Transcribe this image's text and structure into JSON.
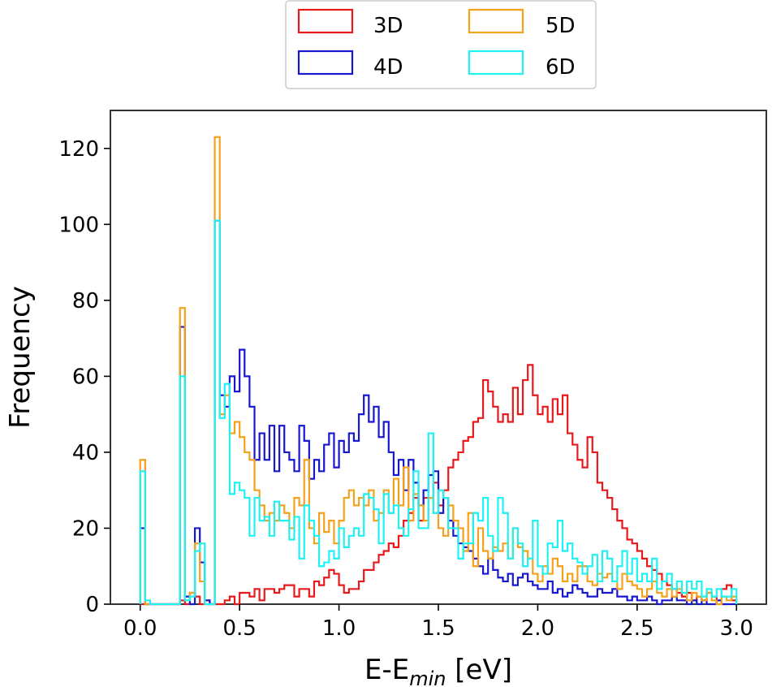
{
  "chart_data": {
    "type": "histogram-step",
    "xlabel": "E-E",
    "xlabel_sub": "min",
    "xlabel_unit": "[eV]",
    "ylabel": "Frequency",
    "xlim": [
      -0.15,
      3.15
    ],
    "ylim": [
      0,
      130
    ],
    "xticks": [
      0.0,
      0.5,
      1.0,
      1.5,
      2.0,
      2.5,
      3.0
    ],
    "xtick_labels": [
      "0.0",
      "0.5",
      "1.0",
      "1.5",
      "2.0",
      "2.5",
      "3.0"
    ],
    "yticks": [
      0,
      20,
      40,
      60,
      80,
      100,
      120
    ],
    "ytick_labels": [
      "0",
      "20",
      "40",
      "60",
      "80",
      "100",
      "120"
    ],
    "legend_location": "upper-center-outside",
    "bin_start": 0.0,
    "bin_width": 0.025,
    "series": [
      {
        "name": "3D",
        "color": "#e8191c",
        "values": [
          0,
          0,
          0,
          0,
          0,
          0,
          0,
          0,
          0,
          0,
          0,
          0,
          0,
          0,
          0,
          0,
          0,
          0,
          0,
          0,
          0,
          0,
          0,
          0,
          0,
          0,
          0,
          0,
          0,
          0,
          0,
          0,
          0,
          0,
          0,
          0,
          0,
          0,
          0,
          0,
          0,
          0,
          0,
          0,
          0,
          0,
          0,
          0,
          0,
          0,
          0,
          0,
          0,
          0,
          1,
          2,
          0,
          1,
          2,
          3,
          3,
          2,
          3,
          1,
          2,
          3,
          4,
          5,
          6,
          4,
          7,
          4,
          5,
          5,
          5,
          3,
          5,
          9,
          11,
          13,
          15,
          17,
          20,
          18,
          19,
          22,
          24,
          22,
          28,
          33,
          36,
          40,
          43,
          44,
          47,
          49,
          59,
          56,
          50,
          52,
          50,
          55,
          52,
          57,
          63,
          55,
          50,
          52,
          48,
          55,
          52,
          49,
          36,
          40,
          44,
          34,
          32,
          30,
          26,
          25,
          22,
          19,
          17,
          16,
          15,
          14,
          12,
          10,
          8,
          6,
          4,
          3,
          2,
          1,
          0,
          1,
          2,
          1,
          0,
          0,
          0,
          0,
          0,
          0,
          0,
          0,
          0,
          0,
          0,
          0
        ]
      },
      {
        "name": "4D",
        "color": "#1717cf",
        "values": [
          20,
          0,
          0,
          0,
          0,
          0,
          0,
          0,
          0,
          0,
          0,
          0,
          0,
          0,
          0,
          0,
          0,
          73,
          0,
          0,
          20,
          11,
          0,
          0,
          0,
          0,
          0,
          0,
          0,
          0,
          0,
          0,
          0,
          0,
          0,
          0,
          0,
          0,
          0,
          0,
          0,
          0,
          0,
          0,
          0,
          0,
          0,
          0,
          0,
          0,
          0,
          0,
          0,
          0,
          0,
          0,
          0,
          0,
          0,
          0,
          0,
          0,
          0,
          0,
          0,
          0,
          0,
          0,
          0,
          0,
          0,
          0,
          0,
          0,
          0,
          0,
          0,
          0,
          0,
          0,
          0,
          0,
          0,
          0,
          0,
          0,
          0,
          0,
          0,
          0,
          0,
          0,
          0,
          0,
          0,
          0,
          0,
          0,
          0,
          0,
          0,
          0,
          0,
          0,
          0,
          0,
          0,
          0,
          0,
          0,
          0,
          0,
          0,
          0,
          0,
          0,
          0,
          0,
          0,
          0,
          0,
          0,
          0,
          0,
          0,
          0,
          0,
          0,
          0,
          0,
          0,
          0,
          0,
          0,
          0,
          0,
          0,
          0,
          0,
          0,
          0,
          0,
          0,
          0,
          0,
          0,
          0,
          0,
          0,
          0,
          0
        ]
      },
      {
        "name": "5D",
        "color": "#f4a11b",
        "values": [
          38,
          0,
          0,
          0,
          0,
          0,
          0,
          0,
          0,
          0,
          0,
          0,
          0,
          0,
          0,
          0,
          0,
          78,
          0,
          0,
          0,
          0,
          0,
          0,
          0,
          0,
          0,
          0,
          0,
          0,
          0,
          0,
          0,
          0,
          0,
          0,
          0,
          0,
          0,
          0,
          0,
          0,
          0,
          0,
          0,
          0,
          0,
          0,
          0,
          0,
          0,
          0,
          0,
          0,
          0,
          0,
          0,
          0,
          0,
          0,
          0,
          0,
          0,
          0,
          0,
          0,
          0,
          0,
          0,
          0,
          0,
          0,
          0,
          0,
          0,
          0,
          0,
          0,
          0,
          0,
          0,
          0,
          0,
          0,
          0,
          0,
          0,
          0,
          0,
          0,
          0,
          0,
          0,
          0,
          0,
          0,
          0,
          0,
          0,
          0,
          0,
          0,
          0,
          0,
          0,
          0,
          0,
          0,
          0,
          0,
          0,
          0,
          0,
          0,
          0,
          0,
          0,
          0,
          0,
          0,
          0,
          0,
          0,
          0,
          0,
          0,
          0,
          0,
          0,
          0,
          0,
          0,
          0,
          0,
          0,
          0,
          0,
          0,
          0,
          0,
          0,
          0,
          0,
          0,
          0,
          0,
          0,
          0,
          0,
          0,
          0
        ]
      },
      {
        "name": "6D",
        "color": "#1ff2f2",
        "values": [
          35,
          1,
          0,
          0,
          0,
          0,
          0,
          0,
          0,
          0,
          0,
          0,
          0,
          0,
          0,
          0,
          0,
          60,
          0,
          0,
          16,
          8,
          0,
          0,
          0,
          0,
          0,
          0,
          0,
          0,
          0,
          0,
          0,
          0,
          0,
          0,
          0,
          0,
          0,
          0,
          0,
          0,
          0,
          0,
          0,
          0,
          0,
          0,
          0,
          0,
          0,
          0,
          0,
          0,
          0,
          0,
          0,
          0,
          0,
          0,
          0,
          0,
          0,
          0,
          0,
          0,
          0,
          0,
          0,
          0,
          0,
          0,
          0,
          0,
          0,
          0,
          0,
          0,
          0,
          0,
          0,
          0,
          0,
          0,
          0,
          0,
          0,
          0,
          0,
          0,
          0,
          0,
          0,
          0,
          0,
          0,
          0,
          0,
          0,
          0,
          0,
          0,
          0,
          0,
          0,
          0,
          0,
          0,
          0,
          0,
          0,
          0,
          0,
          0,
          0,
          0,
          0,
          0,
          0,
          0,
          0,
          0,
          0,
          0,
          0,
          0,
          0,
          0,
          0,
          0,
          0,
          0,
          0,
          0,
          0,
          0,
          0,
          0,
          0,
          0,
          0,
          0,
          0,
          0,
          0,
          0,
          0,
          0,
          0,
          0,
          0
        ]
      }
    ]
  }
}
